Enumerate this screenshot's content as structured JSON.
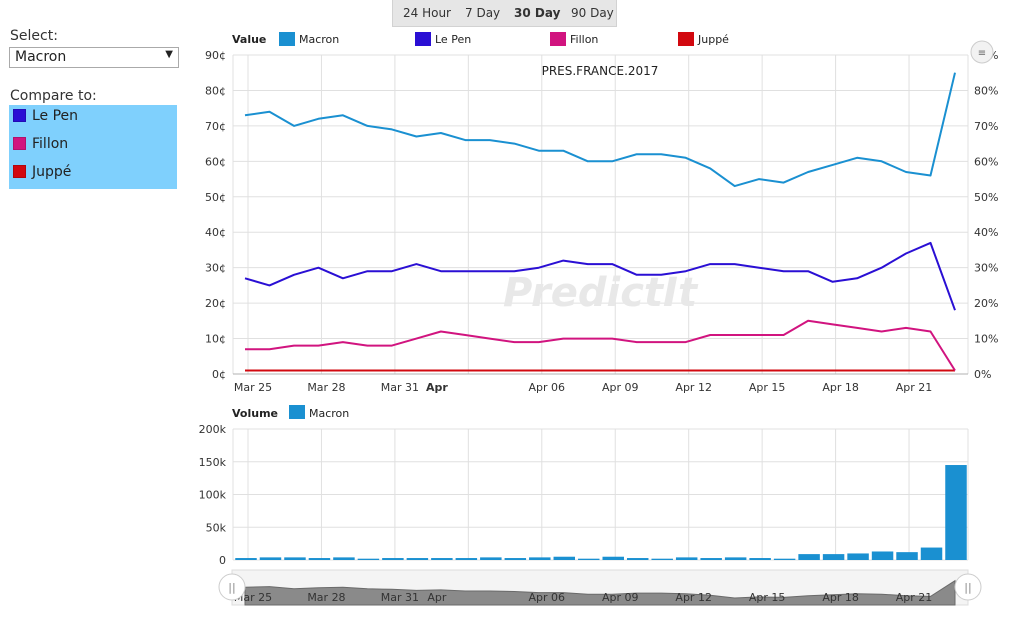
{
  "left": {
    "select_label": "Select:",
    "select_value": "Macron",
    "compare_label": "Compare to:",
    "compare_items": [
      {
        "label": "Le Pen",
        "color": "#2a0fd4"
      },
      {
        "label": "Fillon",
        "color": "#d1147f"
      },
      {
        "label": "Juppé",
        "color": "#d2080f"
      }
    ]
  },
  "range_buttons": [
    "24 Hour",
    "7 Day",
    "30 Day",
    "90 Day"
  ],
  "range_active": "30 Day",
  "watermark": "PredictIt",
  "colors": {
    "macron": "#1a90d1",
    "lepen": "#2a0fd4",
    "fillon": "#d1147f",
    "juppe": "#d2080f",
    "grid": "#e0e0e0"
  },
  "chart_data": [
    {
      "type": "line",
      "title": "PRES.FRANCE.2017",
      "legend_title": "Value",
      "x": [
        "Mar 25",
        "Mar 26",
        "Mar 27",
        "Mar 28",
        "Mar 29",
        "Mar 30",
        "Mar 31",
        "Apr 01",
        "Apr 02",
        "Apr 03",
        "Apr 04",
        "Apr 05",
        "Apr 06",
        "Apr 07",
        "Apr 08",
        "Apr 09",
        "Apr 10",
        "Apr 11",
        "Apr 12",
        "Apr 13",
        "Apr 14",
        "Apr 15",
        "Apr 16",
        "Apr 17",
        "Apr 18",
        "Apr 19",
        "Apr 20",
        "Apr 21",
        "Apr 22",
        "Apr 23"
      ],
      "x_ticks": [
        "Mar 25",
        "Mar 28",
        "Mar 31",
        "Apr",
        "Apr 06",
        "Apr 09",
        "Apr 12",
        "Apr 15",
        "Apr 18",
        "Apr 21"
      ],
      "y_ticks_left": [
        "0¢",
        "10¢",
        "20¢",
        "30¢",
        "40¢",
        "50¢",
        "60¢",
        "70¢",
        "80¢",
        "90¢"
      ],
      "y_ticks_right": [
        "0%",
        "10%",
        "20%",
        "30%",
        "40%",
        "50%",
        "60%",
        "70%",
        "80%",
        "90%"
      ],
      "ylim": [
        0,
        90
      ],
      "grid": true,
      "legend_position": "top",
      "series": [
        {
          "name": "Macron",
          "color": "#1a90d1",
          "values": [
            73,
            74,
            70,
            72,
            73,
            70,
            69,
            67,
            68,
            66,
            66,
            65,
            63,
            63,
            60,
            60,
            62,
            62,
            61,
            58,
            53,
            55,
            54,
            57,
            59,
            61,
            60,
            57,
            56,
            85
          ]
        },
        {
          "name": "Le Pen",
          "color": "#2a0fd4",
          "values": [
            27,
            25,
            28,
            30,
            27,
            29,
            29,
            31,
            29,
            29,
            29,
            29,
            30,
            32,
            31,
            31,
            28,
            28,
            29,
            31,
            31,
            30,
            29,
            29,
            26,
            27,
            30,
            34,
            37,
            18
          ]
        },
        {
          "name": "Fillon",
          "color": "#d1147f",
          "values": [
            7,
            7,
            8,
            8,
            9,
            8,
            8,
            10,
            12,
            11,
            10,
            9,
            9,
            10,
            10,
            10,
            9,
            9,
            9,
            11,
            11,
            11,
            11,
            15,
            14,
            13,
            12,
            13,
            12,
            1
          ]
        },
        {
          "name": "Juppé",
          "color": "#d2080f",
          "values": [
            1,
            1,
            1,
            1,
            1,
            1,
            1,
            1,
            1,
            1,
            1,
            1,
            1,
            1,
            1,
            1,
            1,
            1,
            1,
            1,
            1,
            1,
            1,
            1,
            1,
            1,
            1,
            1,
            1,
            1
          ]
        }
      ]
    },
    {
      "type": "bar",
      "legend_title": "Volume",
      "series": [
        {
          "name": "Macron",
          "color": "#1a90d1",
          "values": [
            3000,
            4000,
            4000,
            3000,
            4000,
            2000,
            3000,
            3000,
            3000,
            3000,
            4000,
            3000,
            4000,
            5000,
            2000,
            5000,
            3000,
            2000,
            4000,
            3000,
            4000,
            3000,
            2000,
            9000,
            9000,
            10000,
            13000,
            12000,
            19000,
            145000
          ]
        }
      ],
      "y_ticks": [
        "0",
        "50k",
        "100k",
        "150k",
        "200k"
      ],
      "ylim": [
        0,
        200000
      ],
      "grid": true
    }
  ],
  "navigator": {
    "x_ticks": [
      "Mar 25",
      "Mar 28",
      "Mar 31",
      "Apr",
      "Apr 06",
      "Apr 09",
      "Apr 12",
      "Apr 15",
      "Apr 18",
      "Apr 21"
    ],
    "left_handle": "left-handle",
    "right_handle": "right-handle"
  }
}
